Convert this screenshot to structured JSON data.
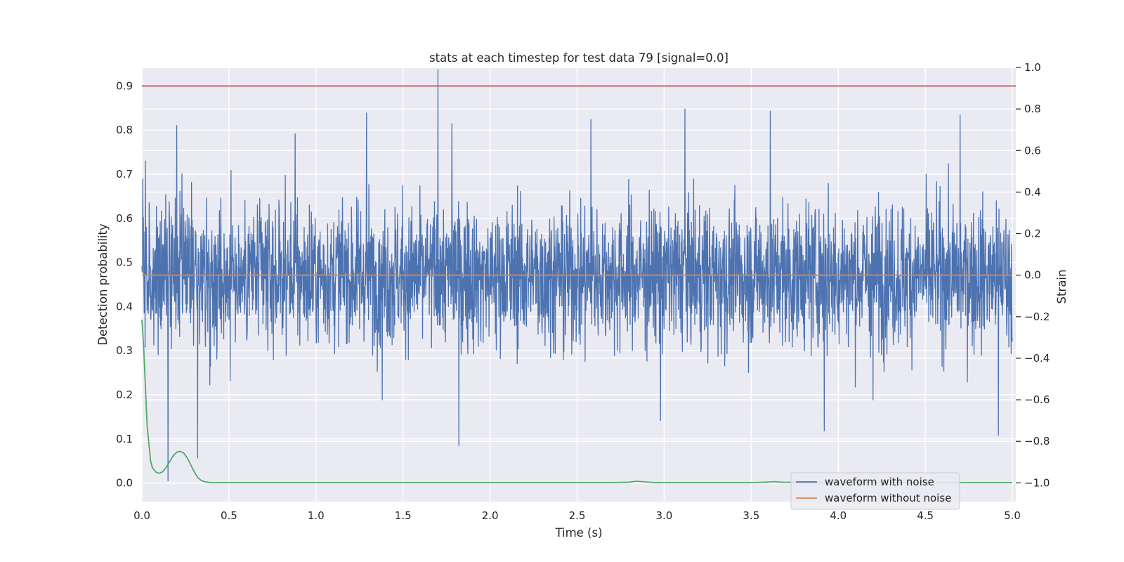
{
  "chart_data": {
    "type": "line",
    "title": "stats at each timestep for test data 79 [signal=0.0]",
    "xlabel": "Time (s)",
    "ylabel": "Detection probability",
    "y2label": "Strain",
    "xlim": [
      0.0,
      5.02
    ],
    "ylim": [
      -0.042,
      0.942
    ],
    "y2lim": [
      -1.09,
      1.0
    ],
    "x_ticks": [
      "0.0",
      "0.5",
      "1.0",
      "1.5",
      "2.0",
      "2.5",
      "3.0",
      "3.5",
      "4.0",
      "4.5",
      "5.0"
    ],
    "y_ticks": [
      "0.0",
      "0.1",
      "0.2",
      "0.3",
      "0.4",
      "0.5",
      "0.6",
      "0.7",
      "0.8",
      "0.9"
    ],
    "y2_ticks": [
      "−1.0",
      "−0.8",
      "−0.6",
      "−0.4",
      "−0.2",
      "0.0",
      "0.2",
      "0.4",
      "0.6",
      "0.8",
      "1.0"
    ],
    "grid": true,
    "legend_position": "lower-right",
    "threshold": {
      "y": 0.9,
      "axis": "left",
      "color": "#c44e52"
    },
    "series": [
      {
        "name": "waveform with noise",
        "axis": "right",
        "color": "#4c72b0",
        "kind": "noise",
        "duration": 5.0,
        "samples": 3000,
        "std": 0.17,
        "min": -0.99,
        "max": 0.99,
        "spikes": [
          [
            0.02,
            0.55
          ],
          [
            0.2,
            0.72
          ],
          [
            0.88,
            0.68
          ],
          [
            1.29,
            0.78
          ],
          [
            1.7,
            0.99
          ],
          [
            1.78,
            0.73
          ],
          [
            2.58,
            0.75
          ],
          [
            3.12,
            0.8
          ],
          [
            3.61,
            0.79
          ],
          [
            4.7,
            0.77
          ],
          [
            0.15,
            -0.99
          ],
          [
            0.32,
            -0.88
          ],
          [
            1.82,
            -0.82
          ],
          [
            2.98,
            -0.7
          ],
          [
            3.92,
            -0.75
          ],
          [
            4.92,
            -0.77
          ],
          [
            1.38,
            -0.6
          ],
          [
            4.2,
            -0.6
          ]
        ]
      },
      {
        "name": "waveform without noise",
        "axis": "right",
        "color": "#dd8452",
        "x": [
          0.0,
          5.0
        ],
        "y": [
          0.0,
          0.0
        ]
      },
      {
        "name": "",
        "axis": "left",
        "color": "#55a868",
        "x": [
          0.0,
          0.01,
          0.02,
          0.03,
          0.04,
          0.05,
          0.06,
          0.08,
          0.1,
          0.12,
          0.14,
          0.16,
          0.18,
          0.2,
          0.22,
          0.24,
          0.26,
          0.28,
          0.3,
          0.32,
          0.34,
          0.36,
          0.38,
          0.4,
          0.5,
          1.0,
          2.0,
          2.7,
          2.8,
          2.84,
          2.88,
          2.95,
          3.0,
          3.5,
          3.58,
          3.63,
          3.68,
          3.75,
          3.85,
          4.0,
          5.0
        ],
        "y": [
          0.37,
          0.31,
          0.22,
          0.13,
          0.09,
          0.05,
          0.035,
          0.025,
          0.022,
          0.026,
          0.036,
          0.049,
          0.062,
          0.07,
          0.072,
          0.068,
          0.057,
          0.042,
          0.026,
          0.013,
          0.006,
          0.003,
          0.002,
          0.001,
          0.001,
          0.001,
          0.001,
          0.001,
          0.002,
          0.004,
          0.003,
          0.001,
          0.001,
          0.001,
          0.002,
          0.003,
          0.002,
          0.0015,
          0.001,
          0.001,
          0.001
        ]
      }
    ]
  }
}
